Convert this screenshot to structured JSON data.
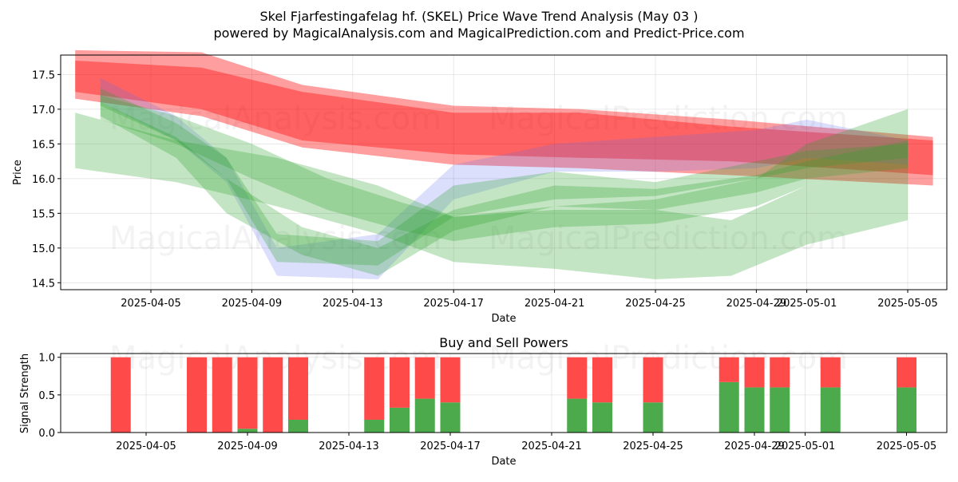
{
  "title_line1": "Skel Fjarfestingafelag hf. (SKEL) Price Wave Trend Analysis (May 03 )",
  "title_line2": "powered by MagicalAnalysis.com and MagicalPrediction.com and Predict-Price.com",
  "watermarks": {
    "left": "MagicalAnalysis.com",
    "right": "MagicalPrediction.com"
  },
  "colors": {
    "red": "#ff0000",
    "green": "#2ca02c",
    "blue": "#5b6cf0",
    "buy_bar": "#4caa4c",
    "sell_bar": "#ff4a4a"
  },
  "chart_data": [
    {
      "type": "area",
      "xlabel": "Date",
      "ylabel": "Price",
      "ylim": [
        14.4,
        17.78
      ],
      "yticks": [
        "14.5",
        "15.0",
        "15.5",
        "16.0",
        "16.5",
        "17.0",
        "17.5"
      ],
      "xticks": [
        "2025-04-05",
        "2025-04-09",
        "2025-04-13",
        "2025-04-17",
        "2025-04-21",
        "2025-04-25",
        "2025-04-29",
        "2025-05-01",
        "2025-05-05"
      ],
      "grid": true,
      "bands": [
        {
          "color": "red",
          "x": [
            "2025-04-02",
            "2025-04-07",
            "2025-04-11",
            "2025-04-17",
            "2025-04-22",
            "2025-04-28",
            "2025-05-06"
          ],
          "upper": [
            17.85,
            17.82,
            17.35,
            17.05,
            17.0,
            16.85,
            16.6
          ],
          "lower": [
            17.25,
            17.0,
            16.55,
            16.35,
            16.3,
            16.25,
            16.05
          ]
        },
        {
          "color": "red",
          "x": [
            "2025-04-02",
            "2025-04-07",
            "2025-04-11",
            "2025-04-17",
            "2025-04-22",
            "2025-04-28",
            "2025-05-06"
          ],
          "upper": [
            17.7,
            17.6,
            17.25,
            16.95,
            16.95,
            16.75,
            16.55
          ],
          "lower": [
            17.15,
            16.9,
            16.45,
            16.2,
            16.15,
            16.05,
            15.9
          ]
        },
        {
          "color": "blue",
          "x": [
            "2025-04-03",
            "2025-04-06",
            "2025-04-08",
            "2025-04-10",
            "2025-04-14",
            "2025-04-17",
            "2025-04-21",
            "2025-04-25",
            "2025-04-29",
            "2025-05-01",
            "2025-05-05"
          ],
          "upper": [
            17.45,
            16.9,
            16.3,
            15.0,
            15.2,
            16.2,
            16.5,
            16.6,
            16.7,
            16.85,
            16.55
          ],
          "lower": [
            17.1,
            16.55,
            15.95,
            14.6,
            14.55,
            15.7,
            16.1,
            16.1,
            16.15,
            16.3,
            16.2
          ]
        },
        {
          "color": "green",
          "x": [
            "2025-04-03",
            "2025-04-06",
            "2025-04-08",
            "2025-04-10",
            "2025-04-14",
            "2025-04-17",
            "2025-04-21",
            "2025-04-25",
            "2025-04-29",
            "2025-05-01",
            "2025-05-05"
          ],
          "upper": [
            17.3,
            16.8,
            16.3,
            15.2,
            15.1,
            15.9,
            16.1,
            15.95,
            16.25,
            16.4,
            16.5
          ],
          "lower": [
            17.05,
            16.55,
            16.0,
            14.8,
            14.75,
            15.45,
            15.7,
            15.75,
            16.0,
            16.15,
            16.3
          ]
        },
        {
          "color": "green",
          "x": [
            "2025-04-03",
            "2025-04-06",
            "2025-04-08",
            "2025-04-11",
            "2025-04-14",
            "2025-04-17",
            "2025-04-21",
            "2025-04-25",
            "2025-04-29",
            "2025-05-01",
            "2025-05-05"
          ],
          "upper": [
            17.1,
            16.6,
            16.0,
            15.3,
            15.0,
            15.55,
            15.9,
            15.85,
            16.05,
            16.25,
            16.55
          ],
          "lower": [
            16.9,
            16.3,
            15.5,
            14.9,
            14.6,
            15.25,
            15.6,
            15.55,
            15.8,
            16.0,
            16.15
          ]
        },
        {
          "color": "green",
          "x": [
            "2025-04-03",
            "2025-04-06",
            "2025-04-09",
            "2025-04-12",
            "2025-04-15",
            "2025-04-17",
            "2025-04-21",
            "2025-04-25",
            "2025-04-29",
            "2025-05-01",
            "2025-05-05"
          ],
          "upper": [
            17.2,
            16.9,
            16.5,
            16.0,
            15.65,
            15.45,
            15.6,
            15.7,
            16.0,
            16.5,
            17.0
          ],
          "lower": [
            16.85,
            16.5,
            16.0,
            15.55,
            15.25,
            15.1,
            15.3,
            15.35,
            15.6,
            15.9,
            16.2
          ]
        },
        {
          "color": "green",
          "x": [
            "2025-04-02",
            "2025-04-06",
            "2025-04-10",
            "2025-04-14",
            "2025-04-17",
            "2025-04-21",
            "2025-04-25",
            "2025-04-28",
            "2025-05-01",
            "2025-05-05"
          ],
          "upper": [
            16.95,
            16.55,
            16.3,
            15.9,
            15.45,
            15.55,
            15.55,
            15.4,
            15.9,
            16.2
          ],
          "lower": [
            16.15,
            15.95,
            15.6,
            15.2,
            14.8,
            14.7,
            14.55,
            14.6,
            15.05,
            15.4
          ]
        }
      ]
    },
    {
      "type": "bar",
      "title": "Buy and Sell Powers",
      "xlabel": "Date",
      "ylabel": "Signal Strength",
      "ylim": [
        0,
        1.05
      ],
      "yticks": [
        "0.0",
        "0.5",
        "1.0"
      ],
      "xticks": [
        "2025-04-05",
        "2025-04-09",
        "2025-04-13",
        "2025-04-17",
        "2025-04-21",
        "2025-04-25",
        "2025-04-29",
        "2025-05-01",
        "2025-05-05"
      ],
      "grid": true,
      "categories": [
        "2025-04-04",
        "2025-04-07",
        "2025-04-08",
        "2025-04-09",
        "2025-04-10",
        "2025-04-11",
        "2025-04-14",
        "2025-04-15",
        "2025-04-16",
        "2025-04-17",
        "2025-04-22",
        "2025-04-23",
        "2025-04-25",
        "2025-04-28",
        "2025-04-29",
        "2025-04-30",
        "2025-05-02",
        "2025-05-05"
      ],
      "series": [
        {
          "name": "buy",
          "values": [
            0.0,
            0.0,
            0.0,
            0.05,
            0.0,
            0.17,
            0.17,
            0.33,
            0.45,
            0.4,
            0.45,
            0.4,
            0.4,
            0.67,
            0.6,
            0.6,
            0.6,
            0.6
          ]
        },
        {
          "name": "sell",
          "values": [
            1.0,
            1.0,
            1.0,
            0.95,
            1.0,
            0.83,
            0.83,
            0.67,
            0.55,
            0.6,
            0.55,
            0.6,
            0.6,
            0.33,
            0.4,
            0.4,
            0.4,
            0.4
          ]
        }
      ]
    }
  ]
}
